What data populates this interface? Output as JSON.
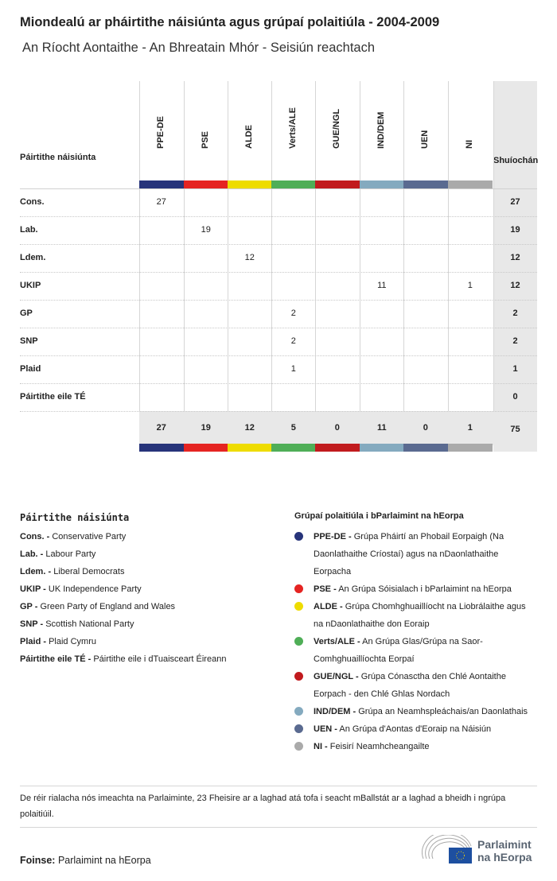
{
  "title": "Miondealú ar pháirtithe náisiúnta agus grúpaí polaitiúla - 2004-2009",
  "subtitle": "An Ríocht Aontaithe - An Bhreatain Mhór - Seisiún reachtach",
  "table": {
    "row_header": "Páirtithe náisiúnta",
    "total_header": "Shuíochán",
    "groups": [
      {
        "label": "PPE-DE",
        "color": "#27347a"
      },
      {
        "label": "PSE",
        "color": "#e52422"
      },
      {
        "label": "ALDE",
        "color": "#eedc00"
      },
      {
        "label": "Verts/ALE",
        "color": "#4fae57"
      },
      {
        "label": "GUE/NGL",
        "color": "#c11b1e"
      },
      {
        "label": "IND/DEM",
        "color": "#84aabf"
      },
      {
        "label": "UEN",
        "color": "#5a6a90"
      },
      {
        "label": "NI",
        "color": "#aaaaaa"
      }
    ],
    "rows": [
      {
        "party": "Cons.",
        "values": [
          "27",
          "",
          "",
          "",
          "",
          "",
          "",
          ""
        ],
        "total": "27"
      },
      {
        "party": "Lab.",
        "values": [
          "",
          "19",
          "",
          "",
          "",
          "",
          "",
          ""
        ],
        "total": "19"
      },
      {
        "party": "Ldem.",
        "values": [
          "",
          "",
          "12",
          "",
          "",
          "",
          "",
          ""
        ],
        "total": "12"
      },
      {
        "party": "UKIP",
        "values": [
          "",
          "",
          "",
          "",
          "",
          "11",
          "",
          "1"
        ],
        "total": "12"
      },
      {
        "party": "GP",
        "values": [
          "",
          "",
          "",
          "2",
          "",
          "",
          "",
          ""
        ],
        "total": "2"
      },
      {
        "party": "SNP",
        "values": [
          "",
          "",
          "",
          "2",
          "",
          "",
          "",
          ""
        ],
        "total": "2"
      },
      {
        "party": "Plaid",
        "values": [
          "",
          "",
          "",
          "1",
          "",
          "",
          "",
          ""
        ],
        "total": "1"
      },
      {
        "party": "Páirtithe eile TÉ",
        "values": [
          "",
          "",
          "",
          "",
          "",
          "",
          "",
          ""
        ],
        "total": "0"
      }
    ],
    "totals": [
      "27",
      "19",
      "12",
      "5",
      "0",
      "11",
      "0",
      "1"
    ],
    "grand_total": "75"
  },
  "legend_parties": {
    "heading": "Páirtithe náisiúnta",
    "items": [
      {
        "abbr": "Cons. -",
        "name": "Conservative Party"
      },
      {
        "abbr": "Lab. -",
        "name": "Labour Party"
      },
      {
        "abbr": "Ldem. -",
        "name": "Liberal Democrats"
      },
      {
        "abbr": "UKIP -",
        "name": "UK Independence Party"
      },
      {
        "abbr": "GP -",
        "name": "Green Party of England and Wales"
      },
      {
        "abbr": "SNP -",
        "name": "Scottish National Party"
      },
      {
        "abbr": "Plaid -",
        "name": "Plaid Cymru"
      },
      {
        "abbr": "Páirtithe eile TÉ -",
        "name": "Páirtithe eile i dTuaisceart Éireann"
      }
    ]
  },
  "legend_groups": {
    "heading": "Grúpaí polaitiúla i bParlaimint na hEorpa",
    "items": [
      {
        "abbr": "PPE-DE -",
        "name": "Grúpa Pháirtí an Phobail Eorpaigh (Na Daonlathaithe Críostaí) agus na nDaonlathaithe Eorpacha",
        "color": "#27347a"
      },
      {
        "abbr": "PSE -",
        "name": "An Grúpa Sóisialach i bParlaimint na hEorpa",
        "color": "#e52422"
      },
      {
        "abbr": "ALDE -",
        "name": "Grúpa Chomhghuaillíocht na Liobrálaithe agus na nDaonlathaithe don Eoraip",
        "color": "#eedc00"
      },
      {
        "abbr": "Verts/ALE -",
        "name": "An Grúpa Glas/Grúpa na Saor-Comhghuaillíochta Eorpaí",
        "color": "#4fae57"
      },
      {
        "abbr": "GUE/NGL -",
        "name": "Grúpa Cónasctha den Chlé Aontaithe Eorpach - den Chlé Ghlas Nordach",
        "color": "#c11b1e"
      },
      {
        "abbr": "IND/DEM -",
        "name": "Grúpa an Neamhspleáchais/an Daonlathais",
        "color": "#84aabf"
      },
      {
        "abbr": "UEN -",
        "name": "An Grúpa d'Aontas d'Eoraip na Náisiún",
        "color": "#5a6a90"
      },
      {
        "abbr": "NI -",
        "name": "Feisirí Neamhcheangailte",
        "color": "#aaaaaa"
      }
    ]
  },
  "note": "De réir rialacha nós imeachta na Parlaiminte, 23 Fheisire ar a laghad atá tofa i seacht mBallstát ar a laghad a bheidh i ngrúpa polaitiúil.",
  "source_label": "Foinse:",
  "source": "Parlaimint na hEorpa",
  "logo": {
    "line1": "Parlaimint",
    "line2": "na hEorpa"
  }
}
